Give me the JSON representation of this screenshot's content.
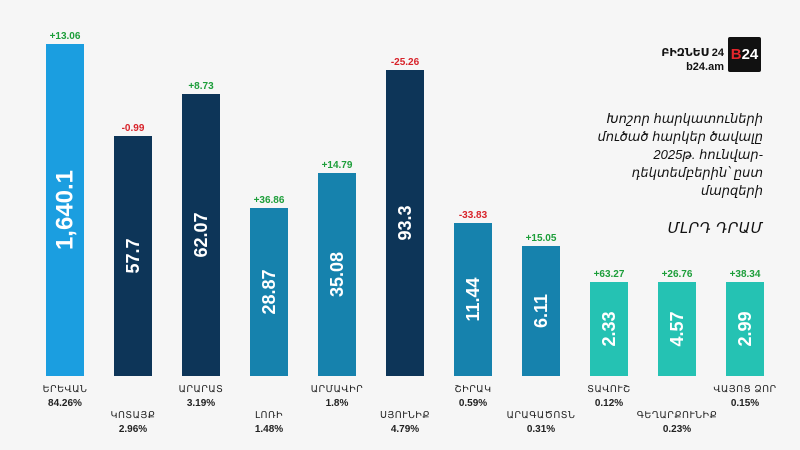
{
  "brand": {
    "name": "ԲԻԶՆԵՍ 24",
    "site": "b24.am",
    "logo_prefix": "B",
    "logo_suffix": "24"
  },
  "subtitle": "Խոշոր հարկատուների մուծած հարկեր ծավալը 2025թ. հունվար-դեկտեմբերին՝ ըստ մարզերի",
  "unit": "ՄԼՐԴ ԴՐԱՄ",
  "colors": {
    "yerevan": "#1b9ee0",
    "navy": "#0d3558",
    "teal": "#1682ad",
    "mint": "#25c2b3",
    "positive": "#1d9e3a",
    "negative": "#d8232a"
  },
  "chart_data": {
    "type": "bar",
    "categories": [
      "ԵՐԵՎԱՆ",
      "ԿՈՏԱՅՔ",
      "ԱՐԱՐԱՏ",
      "ԼՈՌԻ",
      "ԱՐՄԱՎԻՐ",
      "ՍՅՈՒՆԻՔ",
      "ՇԻՐԱԿ",
      "ԱՐԱԳԱԾՈՏՆ",
      "ՏԱՎՈՒՇ",
      "ԳԵՂԱՐՔՈՒՆԻՔ",
      "ՎԱՅՈՑ ՁՈՐ"
    ],
    "values": [
      1640.1,
      57.7,
      62.07,
      28.87,
      35.08,
      93.3,
      11.44,
      6.11,
      2.33,
      4.57,
      2.99
    ],
    "value_labels": [
      "1,640.1",
      "57.7",
      "62.07",
      "28.87",
      "35.08",
      "93.3",
      "11.44",
      "6.11",
      "2.33",
      "4.57",
      "2.99"
    ],
    "changes": [
      "+13.06",
      "-0.99",
      "+8.73",
      "+36.86",
      "+14.79",
      "-25.26",
      "-33.83",
      "+15.05",
      "+63.27",
      "+26.76",
      "+38.34"
    ],
    "shares": [
      "84.26%",
      "2.96%",
      "3.19%",
      "1.48%",
      "1.8%",
      "4.79%",
      "0.59%",
      "0.31%",
      "0.12%",
      "0.23%",
      "0.15%"
    ],
    "bar_colors": [
      "yerevan",
      "navy",
      "navy",
      "teal",
      "teal",
      "navy",
      "teal",
      "teal",
      "mint",
      "mint",
      "mint"
    ],
    "scale": "non-linear (bars not proportional)"
  }
}
